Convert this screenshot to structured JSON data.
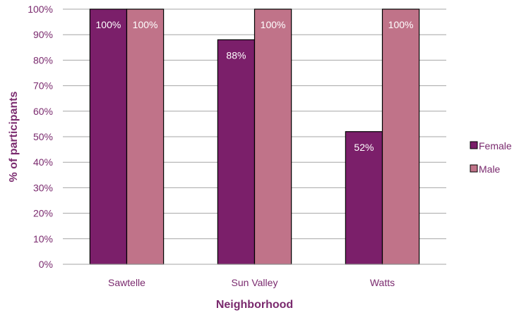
{
  "chart_data": {
    "type": "bar",
    "categories": [
      "Sawtelle",
      "Sun Valley",
      "Watts"
    ],
    "series": [
      {
        "name": "Female",
        "values": [
          100,
          88,
          52
        ],
        "labels": [
          "100%",
          "88%",
          "52%"
        ],
        "color": "#7b1f6a"
      },
      {
        "name": "Male",
        "values": [
          100,
          100,
          100
        ],
        "labels": [
          "100%",
          "100%",
          "100%"
        ],
        "color": "#c07389"
      }
    ],
    "xlabel": "Neighborhood",
    "ylabel": "% of participants",
    "ylim": [
      0,
      100
    ],
    "yticks": [
      "0%",
      "10%",
      "20%",
      "30%",
      "40%",
      "50%",
      "60%",
      "70%",
      "80%",
      "90%",
      "100%"
    ],
    "grid": true,
    "legend_position": "right"
  }
}
